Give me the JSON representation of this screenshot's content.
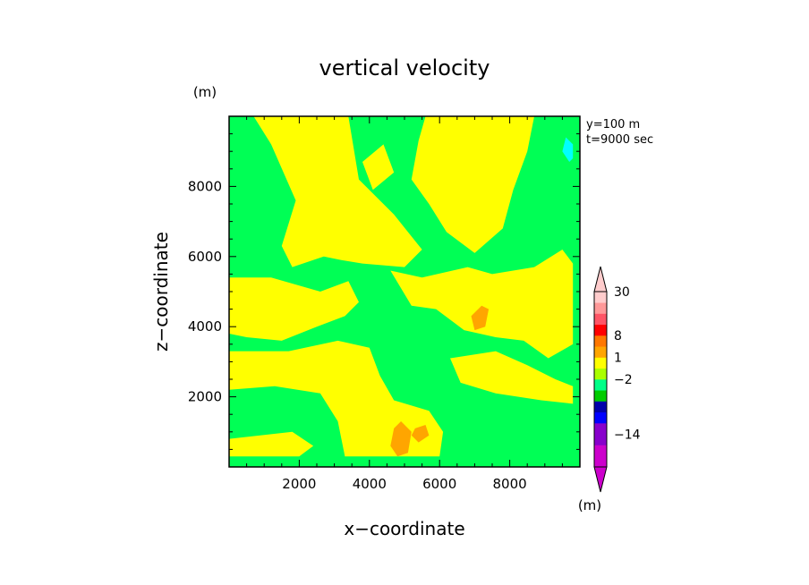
{
  "chart_data": {
    "type": "contour",
    "title": "vertical velocity",
    "xlabel": "x−coordinate",
    "ylabel": "z−coordinate",
    "x_unit": "(m)",
    "y_unit": "(m)",
    "xlim": [
      0,
      10000
    ],
    "ylim": [
      0,
      10000
    ],
    "x_ticks": [
      2000,
      4000,
      6000,
      8000
    ],
    "y_ticks": [
      2000,
      4000,
      6000,
      8000
    ],
    "x_tick_labels": [
      "2000",
      "4000",
      "6000",
      "8000"
    ],
    "y_tick_labels": [
      "2000",
      "4000",
      "6000",
      "8000"
    ],
    "annotation_lines": [
      "y=100 m",
      "t=9000 sec"
    ],
    "background_level_color": "#00ff55",
    "regions": [
      {
        "level": "positive",
        "color": "#ffff00",
        "points": [
          [
            700,
            10000
          ],
          [
            3400,
            10000
          ],
          [
            3700,
            8200
          ],
          [
            4700,
            7200
          ],
          [
            5500,
            6200
          ],
          [
            5000,
            5700
          ],
          [
            3800,
            5800
          ],
          [
            3200,
            5900
          ],
          [
            2700,
            6000
          ],
          [
            1800,
            5700
          ],
          [
            1500,
            6300
          ],
          [
            1900,
            7600
          ],
          [
            1200,
            9200
          ]
        ]
      },
      {
        "level": "positive",
        "color": "#ffff00",
        "points": [
          [
            5600,
            10000
          ],
          [
            8700,
            10000
          ],
          [
            8500,
            9000
          ],
          [
            8100,
            7900
          ],
          [
            7800,
            6800
          ],
          [
            7000,
            6100
          ],
          [
            6200,
            6700
          ],
          [
            5700,
            7500
          ],
          [
            5200,
            8200
          ],
          [
            5400,
            9300
          ]
        ]
      },
      {
        "level": "positive",
        "color": "#ffff00",
        "points": [
          [
            4600,
            5600
          ],
          [
            5500,
            5400
          ],
          [
            6800,
            5700
          ],
          [
            7500,
            5500
          ],
          [
            8700,
            5700
          ],
          [
            9500,
            6200
          ],
          [
            9800,
            5800
          ],
          [
            9800,
            3500
          ],
          [
            9100,
            3100
          ],
          [
            8400,
            3600
          ],
          [
            7600,
            3700
          ],
          [
            6700,
            3900
          ],
          [
            5900,
            4500
          ],
          [
            5200,
            4600
          ]
        ]
      },
      {
        "level": "positive",
        "color": "#ffff00",
        "points": [
          [
            0,
            5400
          ],
          [
            1200,
            5400
          ],
          [
            2600,
            5000
          ],
          [
            3400,
            5300
          ],
          [
            3700,
            4700
          ],
          [
            3300,
            4300
          ],
          [
            2500,
            4000
          ],
          [
            1500,
            3600
          ],
          [
            500,
            3700
          ],
          [
            0,
            3800
          ]
        ]
      },
      {
        "level": "positive",
        "color": "#ffff00",
        "points": [
          [
            0,
            3300
          ],
          [
            1700,
            3300
          ],
          [
            3100,
            3600
          ],
          [
            4000,
            3400
          ],
          [
            4300,
            2600
          ],
          [
            4700,
            1900
          ],
          [
            5700,
            1600
          ],
          [
            6100,
            1000
          ],
          [
            6000,
            300
          ],
          [
            3300,
            300
          ],
          [
            3100,
            1300
          ],
          [
            2600,
            2100
          ],
          [
            1300,
            2300
          ],
          [
            0,
            2200
          ]
        ]
      },
      {
        "level": "positive",
        "color": "#ffff00",
        "points": [
          [
            6300,
            3100
          ],
          [
            7600,
            3300
          ],
          [
            8500,
            2900
          ],
          [
            9300,
            2500
          ],
          [
            9800,
            2300
          ],
          [
            9800,
            1800
          ],
          [
            8900,
            1900
          ],
          [
            7600,
            2100
          ],
          [
            6600,
            2400
          ]
        ]
      },
      {
        "level": "positive",
        "color": "#ffff00",
        "points": [
          [
            0,
            800
          ],
          [
            1800,
            1000
          ],
          [
            2400,
            600
          ],
          [
            2000,
            300
          ],
          [
            1000,
            300
          ],
          [
            0,
            300
          ]
        ]
      },
      {
        "level": "positive",
        "color": "#ffff00",
        "points": [
          [
            3800,
            8700
          ],
          [
            4400,
            9200
          ],
          [
            4700,
            8400
          ],
          [
            4100,
            7900
          ]
        ]
      },
      {
        "level": "1",
        "color": "#ffa500",
        "points": [
          [
            6900,
            4300
          ],
          [
            7200,
            4600
          ],
          [
            7400,
            4500
          ],
          [
            7300,
            4000
          ],
          [
            7000,
            3900
          ]
        ]
      },
      {
        "level": "1",
        "color": "#ffa500",
        "points": [
          [
            4700,
            1100
          ],
          [
            4900,
            1300
          ],
          [
            5200,
            1000
          ],
          [
            5100,
            400
          ],
          [
            4800,
            300
          ],
          [
            4600,
            600
          ]
        ]
      },
      {
        "level": "1",
        "color": "#ffa500",
        "points": [
          [
            5300,
            1100
          ],
          [
            5600,
            1200
          ],
          [
            5700,
            900
          ],
          [
            5400,
            700
          ],
          [
            5200,
            900
          ]
        ]
      },
      {
        "level": "negative",
        "color": "#00ffff",
        "points": [
          [
            9600,
            9400
          ],
          [
            9800,
            9200
          ],
          [
            9800,
            8800
          ],
          [
            9700,
            8700
          ],
          [
            9500,
            9000
          ]
        ]
      }
    ],
    "colorbar": {
      "unit": "(m)",
      "segments": [
        "#cc00cc",
        "#cc00cc",
        "#8800cc",
        "#8800cc",
        "#0000ff",
        "#0000aa",
        "#00cc00",
        "#00ff88",
        "#aaff00",
        "#ffff00",
        "#ffa500",
        "#ff7700",
        "#ff0000",
        "#ff5566",
        "#ff9999",
        "#ffcccc"
      ],
      "labels": [
        {
          "text": "30",
          "segment": 16
        },
        {
          "text": "8",
          "segment": 12
        },
        {
          "text": "1",
          "segment": 10
        },
        {
          "text": "−2",
          "segment": 8
        },
        {
          "text": "−14",
          "segment": 3
        }
      ],
      "min_triangle_color": "#cc00cc",
      "max_triangle_color": "#ffcccc"
    }
  }
}
